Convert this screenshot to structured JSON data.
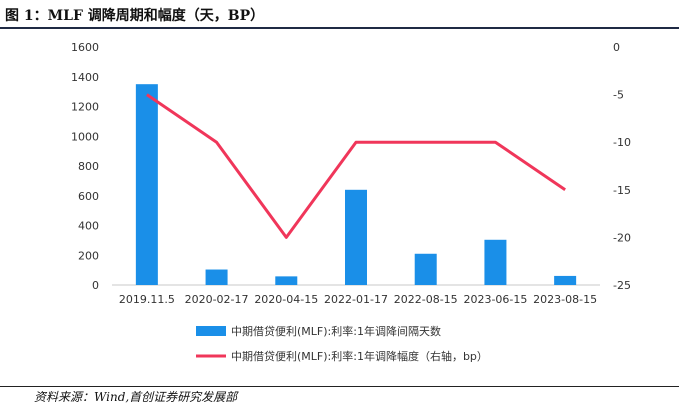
{
  "figure_title": "图 1：MLF 调降周期和幅度（天，BP）",
  "source_note": "资料来源：Wind,首创证券研究发展部",
  "chart_data": {
    "type": "bar+line",
    "categories": [
      "2019.11.5",
      "2020-02-17",
      "2020-04-15",
      "2022-01-17",
      "2022-08-15",
      "2023-06-15",
      "2023-08-15"
    ],
    "series": [
      {
        "name": "中期借贷便利(MLF):利率:1年调降间隔天数",
        "type": "bar",
        "axis": "left",
        "color": "#1a8fe8",
        "values": [
          1350,
          104,
          58,
          640,
          210,
          304,
          61
        ]
      },
      {
        "name": "中期借贷便利(MLF):利率:1年调降幅度（右轴，bp）",
        "type": "line",
        "axis": "right",
        "color": "#f0365a",
        "values": [
          -5,
          -10,
          -20,
          -10,
          -10,
          -10,
          -15
        ]
      }
    ],
    "y_left": {
      "min": 0,
      "max": 1600,
      "ticks": [
        0,
        200,
        400,
        600,
        800,
        1000,
        1200,
        1400,
        1600
      ]
    },
    "y_right": {
      "min": -25,
      "max": 0,
      "ticks": [
        0,
        -5,
        -10,
        -15,
        -20,
        -25
      ]
    },
    "grid": false,
    "legend_position": "bottom"
  }
}
